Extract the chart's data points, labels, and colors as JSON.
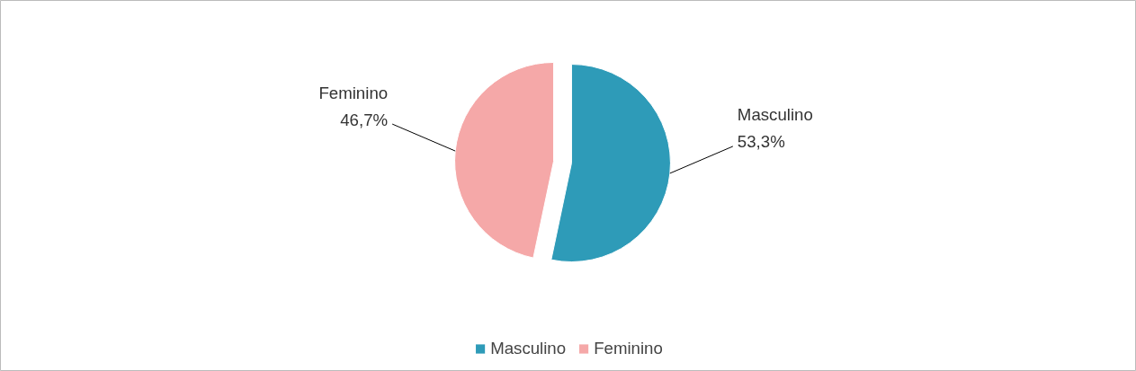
{
  "chart_data": {
    "type": "pie",
    "categories": [
      "Masculino",
      "Feminino"
    ],
    "values": [
      53.3,
      46.7
    ],
    "colors": [
      "#2e9bb8",
      "#f5a8a8"
    ],
    "value_labels": [
      "53,3%",
      "46,7%"
    ],
    "legend": "bottom"
  }
}
